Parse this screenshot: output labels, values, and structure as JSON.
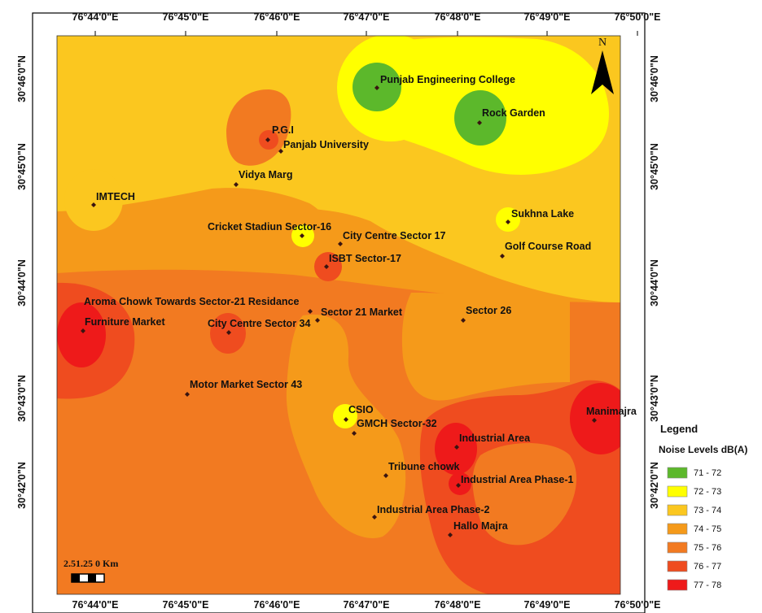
{
  "map": {
    "north_label": "N",
    "longitude_ticks": [
      "76°44'0\"E",
      "76°45'0\"E",
      "76°46'0\"E",
      "76°47'0\"E",
      "76°48'0\"E",
      "76°49'0\"E",
      "76°50'0\"E"
    ],
    "latitude_ticks": [
      "30°46'0\"N",
      "30°45'0\"N",
      "30°44'0\"N",
      "30°43'0\"N",
      "30°42'0\"N"
    ],
    "places": [
      {
        "name": "Punjab Engineering College"
      },
      {
        "name": "Rock Garden"
      },
      {
        "name": "P.G.I"
      },
      {
        "name": "Panjab University"
      },
      {
        "name": "Vidya Marg"
      },
      {
        "name": "IMTECH"
      },
      {
        "name": "Sukhna Lake"
      },
      {
        "name": "Cricket Stadiun Sector-16"
      },
      {
        "name": "City Centre Sector 17"
      },
      {
        "name": "Golf Course Road"
      },
      {
        "name": "ISBT Sector-17"
      },
      {
        "name": "Aroma Chowk Towards Sector-21 Residance"
      },
      {
        "name": "Sector 21 Market"
      },
      {
        "name": "Sector 26"
      },
      {
        "name": "Furniture Market"
      },
      {
        "name": "City Centre Sector 34"
      },
      {
        "name": "Motor Market Sector 43"
      },
      {
        "name": "CSIO"
      },
      {
        "name": "Manimajra"
      },
      {
        "name": "GMCH Sector-32"
      },
      {
        "name": "Industrial Area"
      },
      {
        "name": "Tribune chowk"
      },
      {
        "name": "Industrial Area Phase-1"
      },
      {
        "name": "Industrial Area Phase-2"
      },
      {
        "name": "Hallo Majra"
      }
    ],
    "scale_bar": {
      "label": "2.51.25 0 Km"
    }
  },
  "legend": {
    "title": "Legend",
    "subtitle": "Noise Levels dB(A)",
    "classes": [
      {
        "label": "71 - 72",
        "color": "#5cb82b"
      },
      {
        "label": "72 - 73",
        "color": "#ffff00"
      },
      {
        "label": "73 - 74",
        "color": "#fbc71f"
      },
      {
        "label": "74 - 75",
        "color": "#f59a1a"
      },
      {
        "label": "75 - 76",
        "color": "#f27a21"
      },
      {
        "label": "76 - 77",
        "color": "#ef4c1f"
      },
      {
        "label": "77 - 78",
        "color": "#ee1a1a"
      }
    ]
  }
}
